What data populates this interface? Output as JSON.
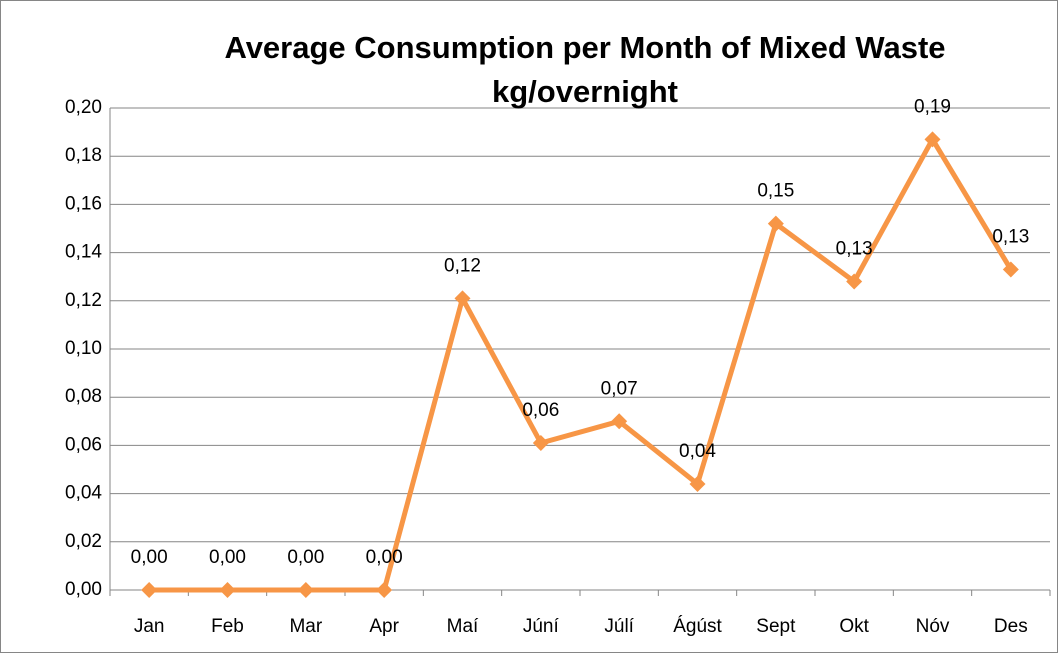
{
  "chart_data": {
    "type": "line",
    "title": "Average Consumption per Month of Mixed Waste kg/overnight",
    "categories": [
      "Jan",
      "Feb",
      "Mar",
      "Apr",
      "Maí",
      "Júní",
      "Júlí",
      "Ágúst",
      "Sept",
      "Okt",
      "Nóv",
      "Des"
    ],
    "values": [
      0,
      0,
      0,
      0,
      0.121,
      0.061,
      0.07,
      0.044,
      0.152,
      0.128,
      0.187,
      0.133
    ],
    "value_labels": [
      "0,00",
      "0,00",
      "0,00",
      "0,00",
      "0,12",
      "0,06",
      "0,07",
      "0,04",
      "0,15",
      "0,13",
      "0,19",
      "0,13"
    ],
    "color": "#f79646",
    "ylim": [
      0,
      0.2
    ],
    "yticks": [
      {
        "value": 0,
        "label": "0,00"
      },
      {
        "value": 0.02,
        "label": "0,02"
      },
      {
        "value": 0.04,
        "label": "0,04"
      },
      {
        "value": 0.06,
        "label": "0,06"
      },
      {
        "value": 0.08,
        "label": "0,08"
      },
      {
        "value": 0.1,
        "label": "0,10"
      },
      {
        "value": 0.12,
        "label": "0,12"
      },
      {
        "value": 0.14,
        "label": "0,14"
      },
      {
        "value": 0.16,
        "label": "0,16"
      },
      {
        "value": 0.18,
        "label": "0,18"
      },
      {
        "value": 0.2,
        "label": "0,20"
      }
    ],
    "grid": true
  }
}
